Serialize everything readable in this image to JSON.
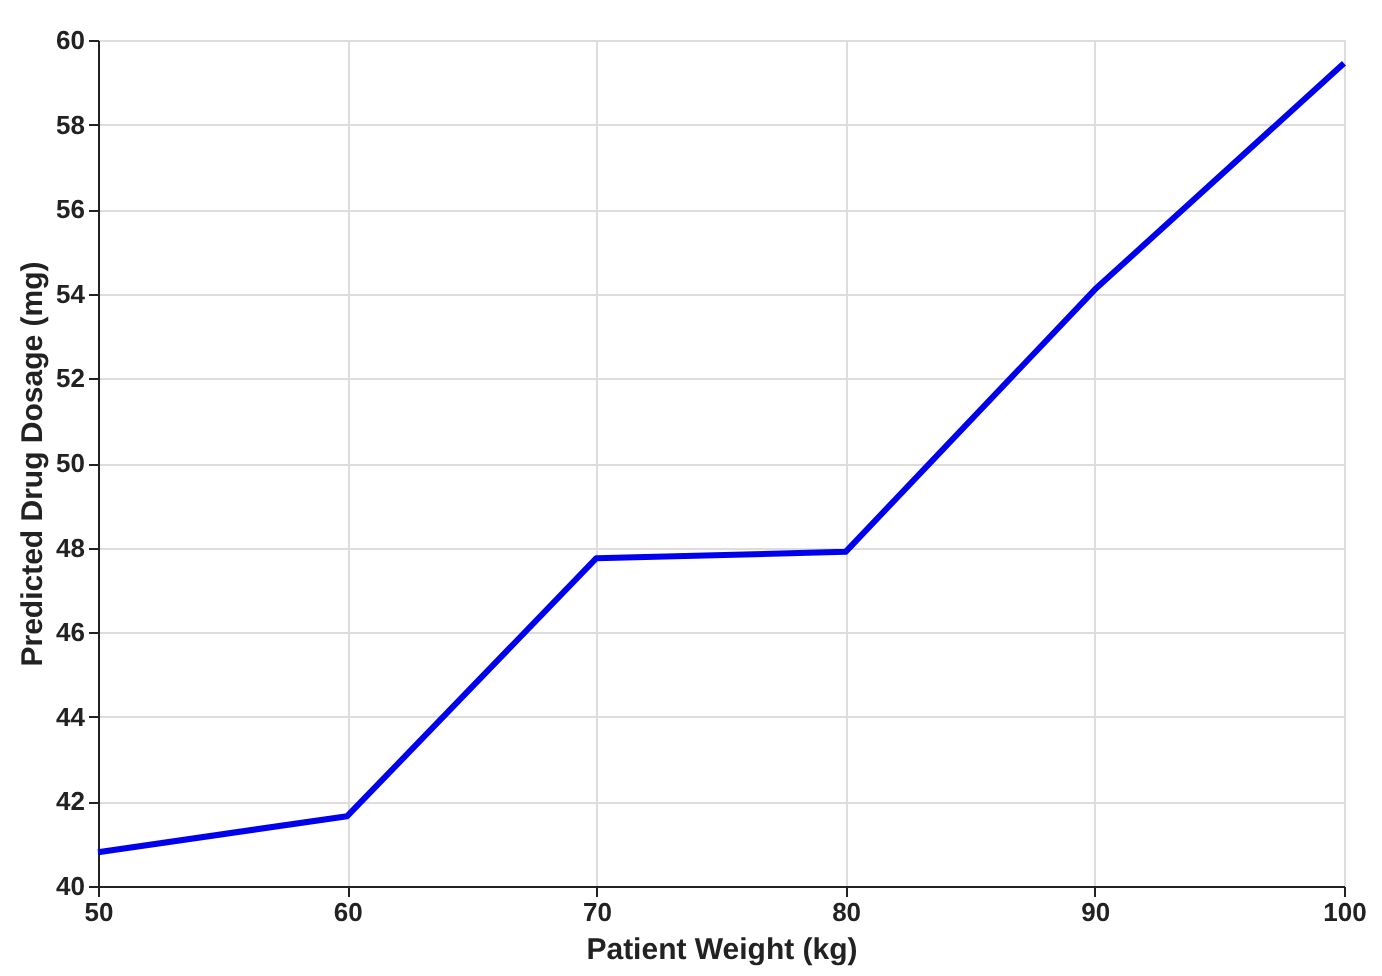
{
  "chart_data": {
    "type": "line",
    "xlabel": "Patient Weight (kg)",
    "ylabel": "Predicted Drug Dosage (mg)",
    "x": [
      50,
      60,
      70,
      80,
      90,
      100
    ],
    "series": [
      {
        "color": "#0000ee",
        "values": [
          40.8,
          41.65,
          47.75,
          47.9,
          54.1,
          59.45
        ]
      }
    ],
    "xlim": [
      50,
      100
    ],
    "xticks": [
      50,
      60,
      70,
      80,
      90,
      100
    ],
    "ylim": [
      40,
      60
    ],
    "yticks": [
      40,
      42,
      44,
      46,
      48,
      50,
      52,
      54,
      56,
      58,
      60
    ],
    "grid": true,
    "marker": "none",
    "line_style": "solid"
  }
}
